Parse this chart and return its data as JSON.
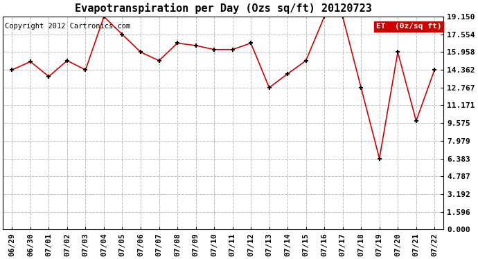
{
  "title": "Evapotranspiration per Day (Ozs sq/ft) 20120723",
  "copyright": "Copyright 2012 Cartronics.com",
  "legend_label": "ET  (0z/sq ft)",
  "x_labels": [
    "06/29",
    "06/30",
    "07/01",
    "07/02",
    "07/03",
    "07/04",
    "07/05",
    "07/06",
    "07/07",
    "07/08",
    "07/09",
    "07/10",
    "07/11",
    "07/12",
    "07/13",
    "07/14",
    "07/15",
    "07/16",
    "07/17",
    "07/18",
    "07/19",
    "07/20",
    "07/21",
    "07/22"
  ],
  "y_values": [
    14.362,
    15.1,
    13.767,
    15.192,
    14.362,
    19.15,
    17.554,
    15.958,
    15.192,
    16.767,
    16.55,
    16.192,
    16.192,
    16.767,
    12.767,
    14.0,
    15.192,
    19.15,
    19.15,
    12.767,
    6.383,
    15.958,
    9.767,
    14.362
  ],
  "y_ticks": [
    0.0,
    1.596,
    3.192,
    4.787,
    6.383,
    7.979,
    9.575,
    11.171,
    12.767,
    14.362,
    15.958,
    17.554,
    19.15
  ],
  "ylim": [
    0.0,
    19.15
  ],
  "line_color": "#cc0000",
  "marker_color": "#000000",
  "background_color": "#ffffff",
  "grid_color": "#bbbbbb",
  "title_fontsize": 11,
  "copyright_fontsize": 7.5,
  "tick_fontsize": 8,
  "legend_bg_color": "#cc0000",
  "legend_text_color": "#ffffff"
}
